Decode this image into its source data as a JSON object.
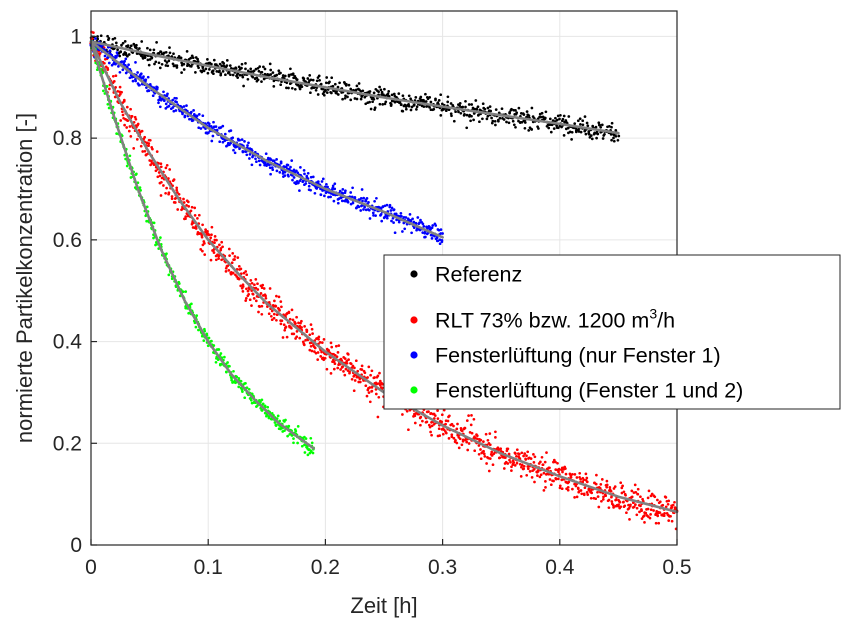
{
  "chart_data": {
    "type": "scatter",
    "xlabel": "Zeit [h]",
    "ylabel": "normierte Partikelkonzentration [-]",
    "xlim": [
      0,
      0.5
    ],
    "ylim": [
      0,
      1.05
    ],
    "xticks": [
      0,
      0.1,
      0.2,
      0.3,
      0.4,
      0.5
    ],
    "xtick_labels": [
      "0",
      "0.1",
      "0.2",
      "0.3",
      "0.4",
      "0.5"
    ],
    "yticks": [
      0,
      0.2,
      0.4,
      0.6,
      0.8,
      1
    ],
    "ytick_labels": [
      "0",
      "0.2",
      "0.4",
      "0.6",
      "0.8",
      "1"
    ],
    "grid": true,
    "legend_position": "right-middle",
    "fit_line_color": "#808080",
    "series": [
      {
        "name": "Referenz",
        "color": "#000000",
        "x_range": [
          0,
          0.45
        ],
        "fit": {
          "x": [
            0,
            0.05,
            0.1,
            0.15,
            0.2,
            0.25,
            0.3,
            0.35,
            0.4,
            0.45
          ],
          "y": [
            0.99,
            0.965,
            0.942,
            0.92,
            0.9,
            0.88,
            0.862,
            0.845,
            0.828,
            0.81
          ]
        }
      },
      {
        "name": "RLT 73% bzw. 1200 m³/h",
        "legend_parts": {
          "prefix": "RLT 73% bzw. 1200 m",
          "sup": "3",
          "suffix": "/h"
        },
        "color": "#ff0000",
        "x_range": [
          0,
          0.5
        ],
        "fit": {
          "x": [
            0,
            0.025,
            0.05,
            0.075,
            0.1,
            0.125,
            0.15,
            0.2,
            0.25,
            0.3,
            0.35,
            0.4,
            0.45,
            0.5
          ],
          "y": [
            0.99,
            0.87,
            0.77,
            0.68,
            0.6,
            0.535,
            0.475,
            0.38,
            0.3,
            0.235,
            0.18,
            0.135,
            0.095,
            0.065
          ]
        }
      },
      {
        "name": "Fensterlüftung (nur Fenster 1)",
        "color": "#0000ff",
        "x_range": [
          0,
          0.3
        ],
        "fit": {
          "x": [
            0,
            0.05,
            0.1,
            0.15,
            0.2,
            0.25,
            0.3
          ],
          "y": [
            0.99,
            0.9,
            0.82,
            0.755,
            0.7,
            0.655,
            0.605
          ]
        }
      },
      {
        "name": "Fensterlüftung (Fenster 1 und 2)",
        "color": "#00ff00",
        "x_range": [
          0,
          0.19
        ],
        "fit": {
          "x": [
            0,
            0.02,
            0.04,
            0.06,
            0.08,
            0.1,
            0.12,
            0.14,
            0.16,
            0.19
          ],
          "y": [
            0.99,
            0.84,
            0.7,
            0.58,
            0.48,
            0.4,
            0.335,
            0.285,
            0.24,
            0.19
          ]
        }
      }
    ]
  }
}
